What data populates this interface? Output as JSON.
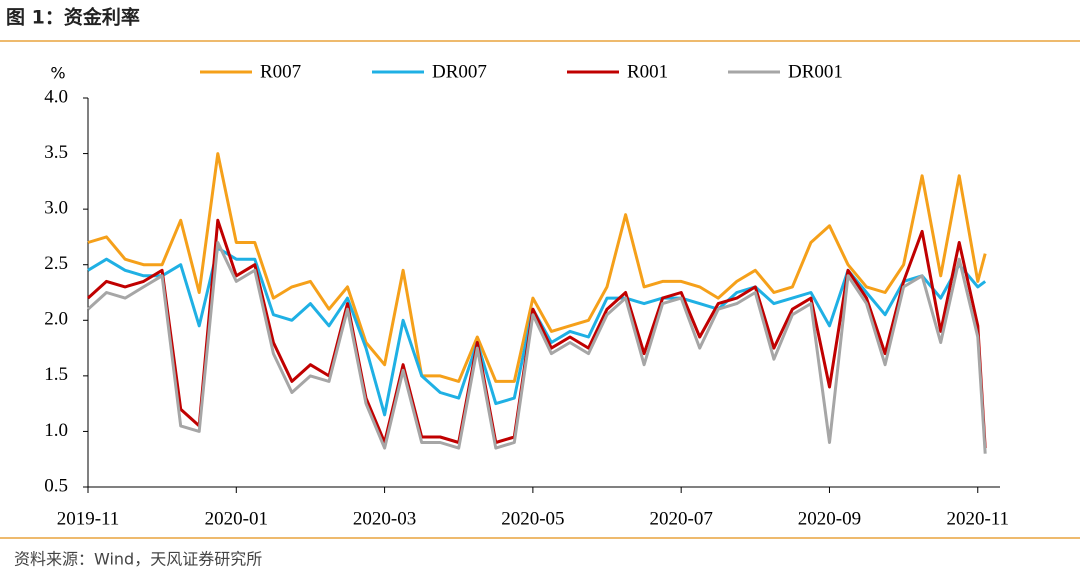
{
  "chart_data": {
    "type": "line",
    "title": "图 1：资金利率",
    "source": "资料来源：Wind，天风证券研究所",
    "ylabel": "%",
    "x": [
      0,
      0.25,
      0.5,
      0.75,
      1,
      1.25,
      1.5,
      1.75,
      2,
      2.25,
      2.5,
      2.75,
      3,
      3.25,
      3.5,
      3.75,
      4,
      4.25,
      4.5,
      4.75,
      5,
      5.25,
      5.5,
      5.75,
      6,
      6.25,
      6.5,
      6.75,
      7,
      7.25,
      7.5,
      7.75,
      8,
      8.25,
      8.5,
      8.75,
      9,
      9.25,
      9.5,
      9.75,
      10,
      10.25,
      10.5,
      10.75,
      11,
      11.25,
      11.5,
      11.75,
      12,
      12.1
    ],
    "series": [
      {
        "name": "R007",
        "color": "#f5a01a",
        "values": [
          2.7,
          2.75,
          2.55,
          2.5,
          2.5,
          2.9,
          2.25,
          3.5,
          2.7,
          2.7,
          2.2,
          2.3,
          2.35,
          2.1,
          2.3,
          1.8,
          1.6,
          2.45,
          1.5,
          1.5,
          1.45,
          1.85,
          1.45,
          1.45,
          2.2,
          1.9,
          1.95,
          2.0,
          2.3,
          2.95,
          2.3,
          2.35,
          2.35,
          2.3,
          2.2,
          2.35,
          2.45,
          2.25,
          2.3,
          2.7,
          2.85,
          2.5,
          2.3,
          2.25,
          2.5,
          3.3,
          2.4,
          3.3,
          2.35,
          2.6
        ]
      },
      {
        "name": "DR007",
        "color": "#1fb0e4",
        "values": [
          2.45,
          2.55,
          2.45,
          2.4,
          2.4,
          2.5,
          1.95,
          2.65,
          2.55,
          2.55,
          2.05,
          2.0,
          2.15,
          1.95,
          2.2,
          1.75,
          1.15,
          2.0,
          1.5,
          1.35,
          1.3,
          1.8,
          1.25,
          1.3,
          2.1,
          1.8,
          1.9,
          1.85,
          2.2,
          2.2,
          2.15,
          2.2,
          2.2,
          2.15,
          2.1,
          2.25,
          2.3,
          2.15,
          2.2,
          2.25,
          1.95,
          2.45,
          2.25,
          2.05,
          2.35,
          2.4,
          2.2,
          2.5,
          2.3,
          2.35
        ]
      },
      {
        "name": "R001",
        "color": "#c00000",
        "values": [
          2.2,
          2.35,
          2.3,
          2.35,
          2.45,
          1.2,
          1.05,
          2.9,
          2.4,
          2.5,
          1.8,
          1.45,
          1.6,
          1.5,
          2.15,
          1.3,
          0.9,
          1.6,
          0.95,
          0.95,
          0.9,
          1.8,
          0.9,
          0.95,
          2.1,
          1.75,
          1.85,
          1.75,
          2.1,
          2.25,
          1.7,
          2.2,
          2.25,
          1.85,
          2.15,
          2.2,
          2.3,
          1.75,
          2.1,
          2.2,
          1.4,
          2.45,
          2.2,
          1.7,
          2.35,
          2.8,
          1.9,
          2.7,
          1.95,
          0.85
        ]
      },
      {
        "name": "DR001",
        "color": "#a6a6a6",
        "values": [
          2.1,
          2.25,
          2.2,
          2.3,
          2.4,
          1.05,
          1.0,
          2.7,
          2.35,
          2.45,
          1.7,
          1.35,
          1.5,
          1.45,
          2.1,
          1.25,
          0.85,
          1.55,
          0.9,
          0.9,
          0.85,
          1.75,
          0.85,
          0.9,
          2.05,
          1.7,
          1.8,
          1.7,
          2.05,
          2.2,
          1.6,
          2.15,
          2.2,
          1.75,
          2.1,
          2.15,
          2.25,
          1.65,
          2.05,
          2.15,
          0.9,
          2.4,
          2.15,
          1.6,
          2.3,
          2.4,
          1.8,
          2.55,
          1.85,
          0.8
        ]
      }
    ],
    "xlim": [
      0,
      12.3
    ],
    "xticks": [
      {
        "value": 0,
        "label": "2019-11"
      },
      {
        "value": 2,
        "label": "2020-01"
      },
      {
        "value": 4,
        "label": "2020-03"
      },
      {
        "value": 6,
        "label": "2020-05"
      },
      {
        "value": 8,
        "label": "2020-07"
      },
      {
        "value": 10,
        "label": "2020-09"
      },
      {
        "value": 12,
        "label": "2020-11"
      }
    ],
    "ylim": [
      0.5,
      4.0
    ],
    "yticks": [
      {
        "value": 0.5,
        "label": "0.5"
      },
      {
        "value": 1,
        "label": "1.0"
      },
      {
        "value": 1.5,
        "label": "1.5"
      },
      {
        "value": 2,
        "label": "2.0"
      },
      {
        "value": 2.5,
        "label": "2.5"
      },
      {
        "value": 3,
        "label": "3.0"
      },
      {
        "value": 3.5,
        "label": "3.5"
      },
      {
        "value": 4,
        "label": "4.0"
      }
    ],
    "legend": "top"
  }
}
